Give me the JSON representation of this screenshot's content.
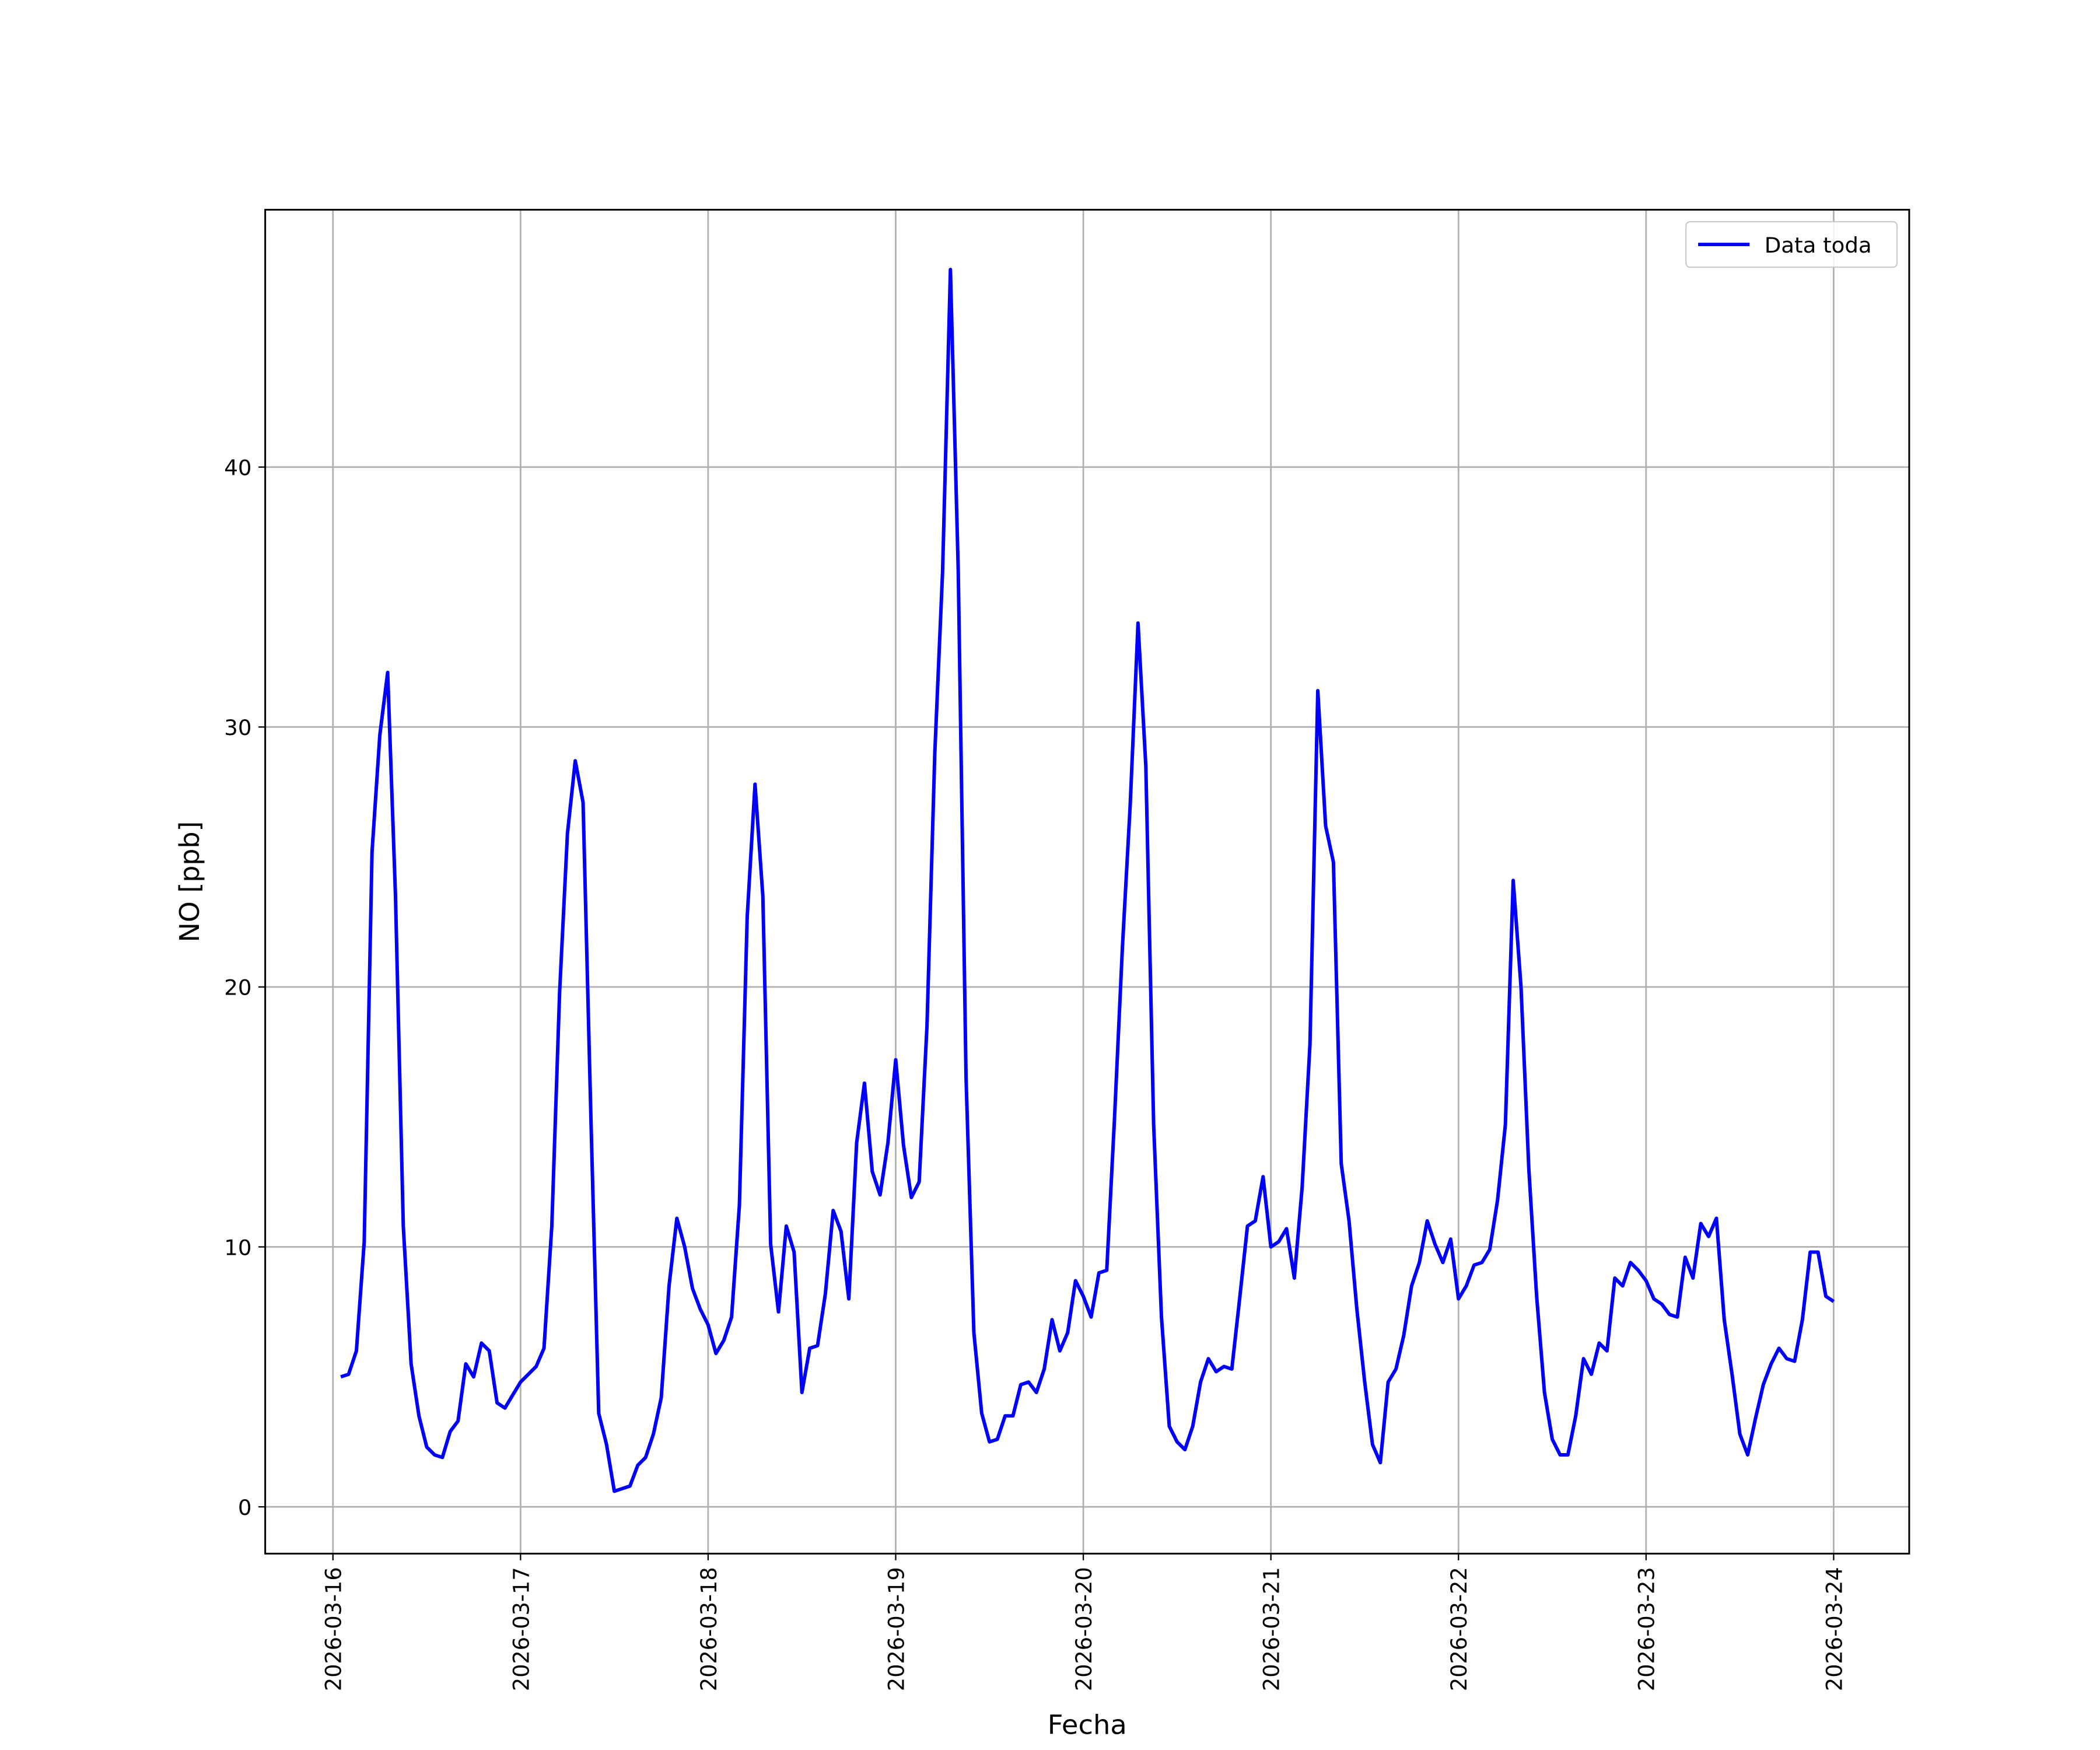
{
  "chart_data": {
    "type": "line",
    "x_label": "Fecha",
    "y_label": "NO [ppb]",
    "x": [
      "2026-03-16T01:00",
      "2026-03-16T02:00",
      "2026-03-16T03:00",
      "2026-03-16T04:00",
      "2026-03-16T05:00",
      "2026-03-16T06:00",
      "2026-03-16T07:00",
      "2026-03-16T08:00",
      "2026-03-16T09:00",
      "2026-03-16T10:00",
      "2026-03-16T11:00",
      "2026-03-16T12:00",
      "2026-03-16T13:00",
      "2026-03-16T14:00",
      "2026-03-16T15:00",
      "2026-03-16T16:00",
      "2026-03-16T17:00",
      "2026-03-16T18:00",
      "2026-03-16T19:00",
      "2026-03-16T20:00",
      "2026-03-16T21:00",
      "2026-03-16T22:00",
      "2026-03-16T23:00",
      "2026-03-17T00:00",
      "2026-03-17T01:00",
      "2026-03-17T02:00",
      "2026-03-17T03:00",
      "2026-03-17T04:00",
      "2026-03-17T05:00",
      "2026-03-17T06:00",
      "2026-03-17T07:00",
      "2026-03-17T08:00",
      "2026-03-17T09:00",
      "2026-03-17T10:00",
      "2026-03-17T11:00",
      "2026-03-17T12:00",
      "2026-03-17T13:00",
      "2026-03-17T14:00",
      "2026-03-17T15:00",
      "2026-03-17T16:00",
      "2026-03-17T17:00",
      "2026-03-17T18:00",
      "2026-03-17T19:00",
      "2026-03-17T20:00",
      "2026-03-17T21:00",
      "2026-03-17T22:00",
      "2026-03-17T23:00",
      "2026-03-18T00:00",
      "2026-03-18T01:00",
      "2026-03-18T02:00",
      "2026-03-18T03:00",
      "2026-03-18T04:00",
      "2026-03-18T05:00",
      "2026-03-18T06:00",
      "2026-03-18T07:00",
      "2026-03-18T08:00",
      "2026-03-18T09:00",
      "2026-03-18T10:00",
      "2026-03-18T11:00",
      "2026-03-18T12:00",
      "2026-03-18T13:00",
      "2026-03-18T14:00",
      "2026-03-18T15:00",
      "2026-03-18T16:00",
      "2026-03-18T17:00",
      "2026-03-18T18:00",
      "2026-03-18T19:00",
      "2026-03-18T20:00",
      "2026-03-18T21:00",
      "2026-03-18T22:00",
      "2026-03-18T23:00",
      "2026-03-19T00:00",
      "2026-03-19T01:00",
      "2026-03-19T02:00",
      "2026-03-19T03:00",
      "2026-03-19T04:00",
      "2026-03-19T05:00",
      "2026-03-19T06:00",
      "2026-03-19T07:00",
      "2026-03-19T08:00",
      "2026-03-19T09:00",
      "2026-03-19T10:00",
      "2026-03-19T11:00",
      "2026-03-19T12:00",
      "2026-03-19T13:00",
      "2026-03-19T14:00",
      "2026-03-19T15:00",
      "2026-03-19T16:00",
      "2026-03-19T17:00",
      "2026-03-19T18:00",
      "2026-03-19T19:00",
      "2026-03-19T20:00",
      "2026-03-19T21:00",
      "2026-03-19T22:00",
      "2026-03-19T23:00",
      "2026-03-20T00:00",
      "2026-03-20T01:00",
      "2026-03-20T02:00",
      "2026-03-20T03:00",
      "2026-03-20T04:00",
      "2026-03-20T05:00",
      "2026-03-20T06:00",
      "2026-03-20T07:00",
      "2026-03-20T08:00",
      "2026-03-20T09:00",
      "2026-03-20T10:00",
      "2026-03-20T11:00",
      "2026-03-20T12:00",
      "2026-03-20T13:00",
      "2026-03-20T14:00",
      "2026-03-20T15:00",
      "2026-03-20T16:00",
      "2026-03-20T17:00",
      "2026-03-20T18:00",
      "2026-03-20T19:00",
      "2026-03-20T20:00",
      "2026-03-20T21:00",
      "2026-03-20T22:00",
      "2026-03-20T23:00",
      "2026-03-21T00:00",
      "2026-03-21T01:00",
      "2026-03-21T02:00",
      "2026-03-21T03:00",
      "2026-03-21T04:00",
      "2026-03-21T05:00",
      "2026-03-21T06:00",
      "2026-03-21T07:00",
      "2026-03-21T08:00",
      "2026-03-21T09:00",
      "2026-03-21T10:00",
      "2026-03-21T11:00",
      "2026-03-21T12:00",
      "2026-03-21T13:00",
      "2026-03-21T14:00",
      "2026-03-21T15:00",
      "2026-03-21T16:00",
      "2026-03-21T17:00",
      "2026-03-21T18:00",
      "2026-03-21T19:00",
      "2026-03-21T20:00",
      "2026-03-21T21:00",
      "2026-03-21T22:00",
      "2026-03-21T23:00",
      "2026-03-22T00:00",
      "2026-03-22T01:00",
      "2026-03-22T02:00",
      "2026-03-22T03:00",
      "2026-03-22T04:00",
      "2026-03-22T05:00",
      "2026-03-22T06:00",
      "2026-03-22T07:00",
      "2026-03-22T08:00",
      "2026-03-22T09:00",
      "2026-03-22T10:00",
      "2026-03-22T11:00",
      "2026-03-22T12:00",
      "2026-03-22T13:00",
      "2026-03-22T14:00",
      "2026-03-22T15:00",
      "2026-03-22T16:00",
      "2026-03-22T17:00",
      "2026-03-22T18:00",
      "2026-03-22T19:00",
      "2026-03-22T20:00",
      "2026-03-22T21:00",
      "2026-03-22T22:00",
      "2026-03-22T23:00",
      "2026-03-23T00:00",
      "2026-03-23T01:00",
      "2026-03-23T02:00",
      "2026-03-23T03:00",
      "2026-03-23T04:00",
      "2026-03-23T05:00",
      "2026-03-23T06:00",
      "2026-03-23T07:00",
      "2026-03-23T08:00",
      "2026-03-23T09:00",
      "2026-03-23T10:00",
      "2026-03-23T11:00",
      "2026-03-23T12:00",
      "2026-03-23T13:00",
      "2026-03-23T14:00",
      "2026-03-23T15:00",
      "2026-03-23T16:00",
      "2026-03-23T17:00",
      "2026-03-23T18:00",
      "2026-03-23T19:00",
      "2026-03-23T20:00",
      "2026-03-23T21:00",
      "2026-03-23T22:00",
      "2026-03-23T23:00",
      "2026-03-24T00:00"
    ],
    "series": [
      {
        "name": "Data toda",
        "color": "#0000ff",
        "values": [
          5.0,
          5.1,
          6.0,
          10.2,
          25.2,
          29.7,
          32.1,
          23.5,
          10.8,
          5.5,
          3.5,
          2.3,
          2.0,
          1.9,
          2.9,
          3.3,
          5.5,
          5.0,
          6.3,
          6.0,
          4.0,
          3.8,
          4.3,
          4.8,
          5.1,
          5.4,
          6.1,
          10.8,
          19.8,
          25.9,
          28.7,
          27.1,
          15.0,
          3.6,
          2.4,
          0.6,
          0.7,
          0.8,
          1.6,
          1.9,
          2.8,
          4.2,
          8.5,
          11.1,
          10.0,
          8.4,
          7.6,
          7.0,
          5.9,
          6.4,
          7.3,
          11.6,
          22.7,
          27.8,
          23.5,
          10.1,
          7.5,
          10.8,
          9.8,
          4.4,
          6.1,
          6.2,
          8.2,
          11.4,
          10.6,
          8.0,
          14.0,
          16.3,
          12.9,
          12.0,
          14.0,
          17.2,
          13.9,
          11.9,
          12.5,
          18.5,
          29.0,
          36.0,
          47.6,
          36.0,
          16.5,
          6.7,
          3.6,
          2.5,
          2.6,
          3.5,
          3.5,
          4.7,
          4.8,
          4.4,
          5.3,
          7.2,
          6.0,
          6.7,
          8.7,
          8.1,
          7.3,
          9.0,
          9.1,
          15.0,
          21.5,
          27.0,
          34.0,
          28.5,
          14.7,
          7.3,
          3.1,
          2.5,
          2.2,
          3.1,
          4.8,
          5.7,
          5.2,
          5.4,
          5.3,
          8.0,
          10.8,
          11.0,
          12.7,
          10.0,
          10.2,
          10.7,
          8.8,
          12.3,
          17.8,
          31.4,
          26.2,
          24.8,
          13.2,
          11.0,
          7.6,
          4.8,
          2.4,
          1.7,
          4.8,
          5.3,
          6.6,
          8.5,
          9.4,
          11.0,
          10.1,
          9.4,
          10.3,
          8.0,
          8.5,
          9.3,
          9.4,
          9.9,
          11.8,
          14.7,
          24.1,
          20.0,
          13.0,
          8.1,
          4.4,
          2.6,
          2.0,
          2.0,
          3.5,
          5.7,
          5.1,
          6.3,
          6.0,
          8.8,
          8.5,
          9.4,
          9.1,
          8.7,
          8.0,
          7.8,
          7.4,
          7.3,
          9.6,
          8.8,
          10.9,
          10.4,
          11.1,
          7.2,
          5.1,
          2.8,
          2.0,
          3.4,
          4.7,
          5.5,
          6.1,
          5.7,
          5.6,
          7.2,
          9.8,
          9.8,
          8.1,
          7.9
        ]
      }
    ],
    "xlim": [
      "2026-03-15T15:20",
      "2026-03-24T09:40"
    ],
    "xticks": [
      "2026-03-16",
      "2026-03-17",
      "2026-03-18",
      "2026-03-19",
      "2026-03-20",
      "2026-03-21",
      "2026-03-22",
      "2026-03-23",
      "2026-03-24"
    ],
    "ylim": [
      -1.8,
      49.9
    ],
    "yticks": [
      0,
      10,
      20,
      30,
      40
    ],
    "grid": true,
    "legend": "upper right"
  }
}
